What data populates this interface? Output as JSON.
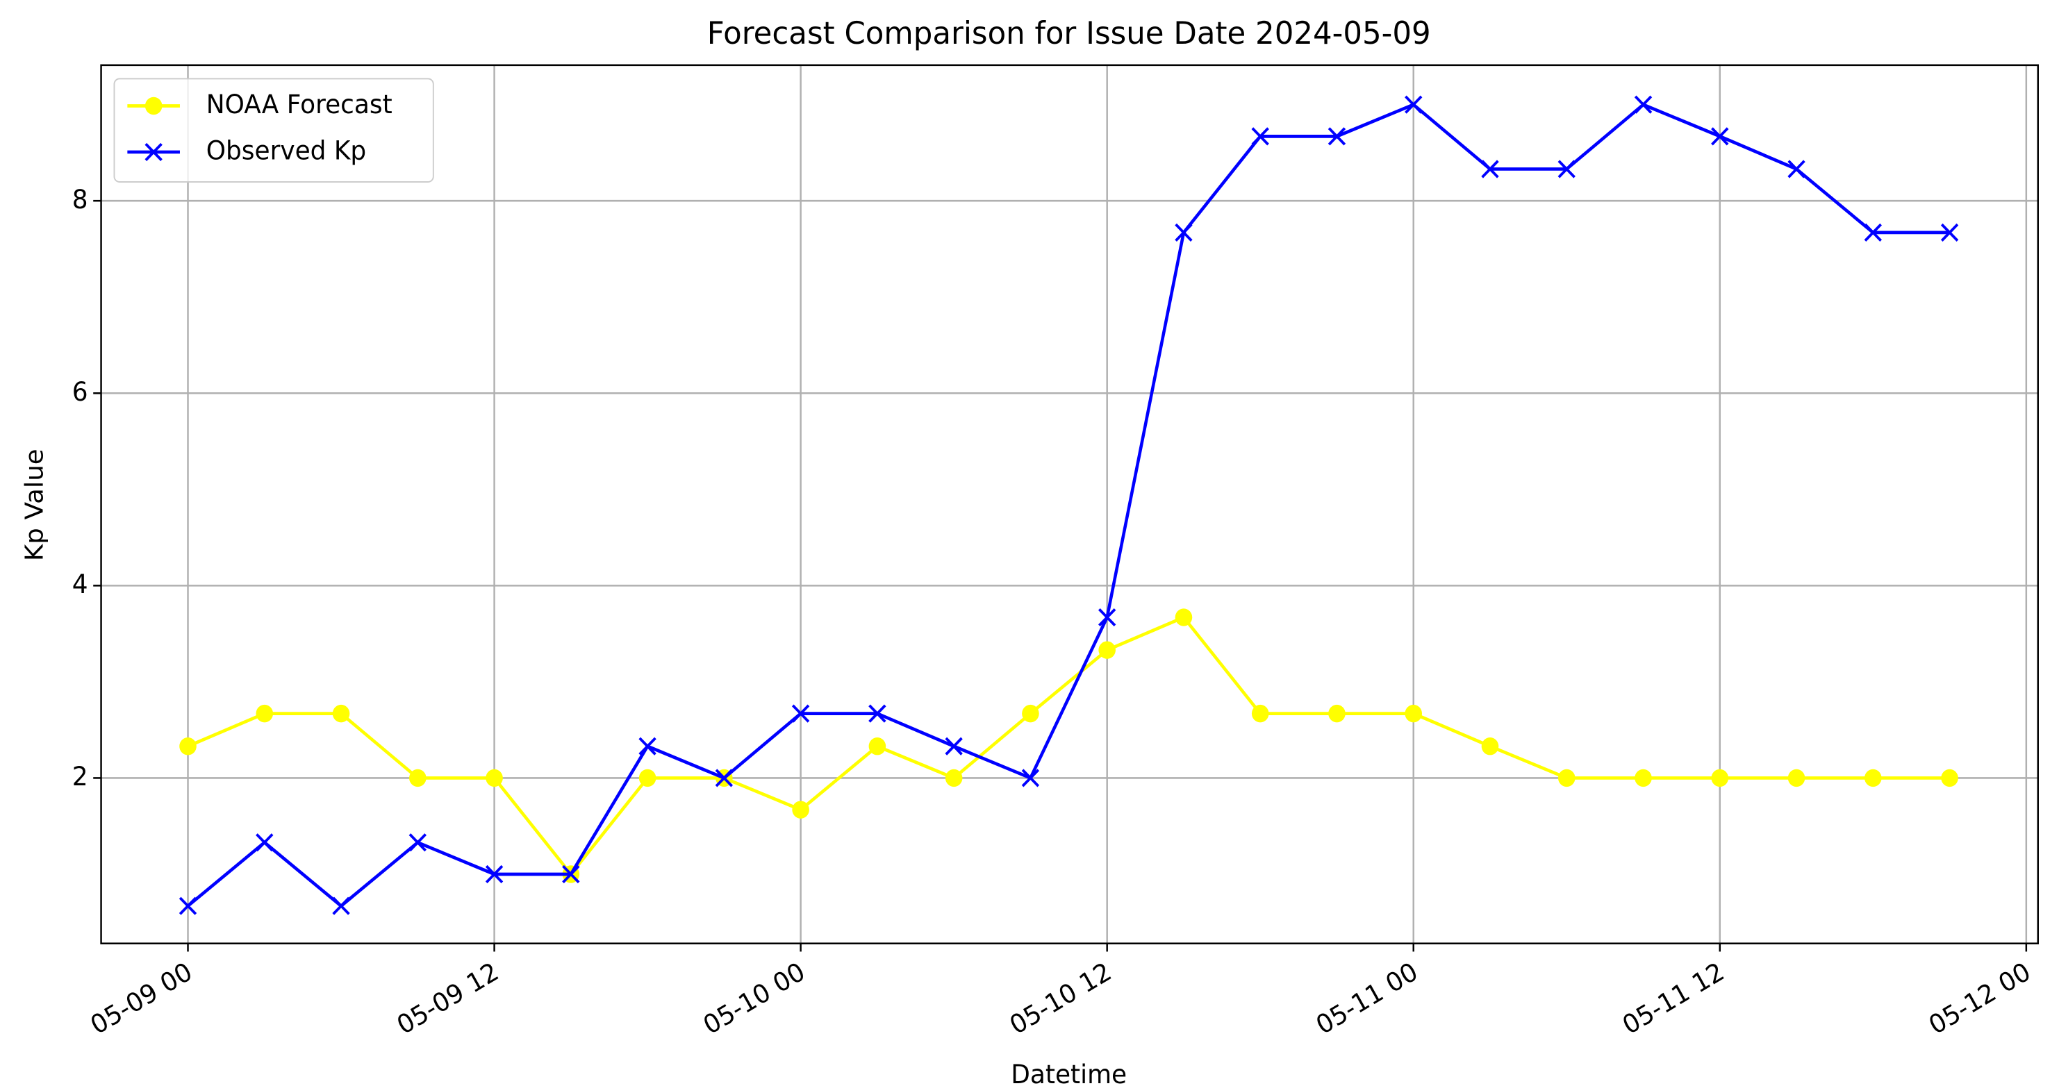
{
  "chart_data": {
    "type": "line",
    "title": "Forecast Comparison for Issue Date 2024-05-09",
    "x_label": "Datetime",
    "y_label": "Kp Value",
    "x": [
      "05-09 00",
      "05-09 03",
      "05-09 06",
      "05-09 09",
      "05-09 12",
      "05-09 15",
      "05-09 18",
      "05-09 21",
      "05-10 00",
      "05-10 03",
      "05-10 06",
      "05-10 09",
      "05-10 12",
      "05-10 15",
      "05-10 18",
      "05-10 21",
      "05-11 00",
      "05-11 03",
      "05-11 06",
      "05-11 09",
      "05-11 12",
      "05-11 15",
      "05-11 18",
      "05-11 21"
    ],
    "series": [
      {
        "name": "NOAA Forecast",
        "color": "#ffff00",
        "marker": "o",
        "values": [
          2.33,
          2.67,
          2.67,
          2,
          2,
          1,
          2,
          2,
          1.67,
          2.33,
          2,
          2.67,
          3.33,
          3.67,
          2.67,
          2.67,
          2.67,
          2.33,
          2,
          2,
          2,
          2,
          2,
          2
        ]
      },
      {
        "name": "Observed Kp",
        "color": "#0000ff",
        "marker": "x",
        "values": [
          0.67,
          1.33,
          0.67,
          1.33,
          1,
          1,
          2.33,
          2,
          2.67,
          2.67,
          2.33,
          2,
          3.67,
          7.67,
          8.67,
          8.67,
          9,
          8.33,
          8.33,
          9,
          8.67,
          8.33,
          7.67,
          7.67
        ]
      }
    ],
    "xlim": [
      "05-08 20.6",
      "05-12 00.46"
    ],
    "xticks": [
      "05-09 00",
      "05-09 12",
      "05-10 00",
      "05-10 12",
      "05-11 00",
      "05-11 12",
      "05-12 00"
    ],
    "ylim": [
      0.28,
      9.41
    ],
    "yticks": [
      2,
      4,
      6,
      8
    ],
    "grid": true,
    "legend": "upper left"
  }
}
